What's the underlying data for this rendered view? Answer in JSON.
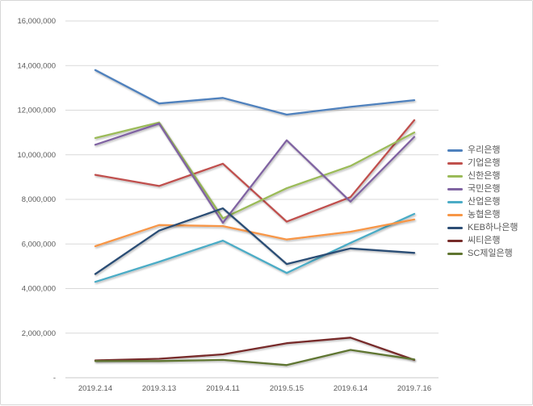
{
  "chart_data": {
    "type": "line",
    "title": "",
    "xlabel": "",
    "ylabel": "",
    "categories": [
      "2019.2.14",
      "2019.3.13",
      "2019.4.11",
      "2019.5.15",
      "2019.6.14",
      "2019.7.16"
    ],
    "series": [
      {
        "name": "우리은행",
        "color": "#4F81BD",
        "values": [
          13800000,
          12300000,
          12550000,
          11800000,
          12150000,
          12450000
        ]
      },
      {
        "name": "기업은행",
        "color": "#C0504D",
        "values": [
          9100000,
          8600000,
          9600000,
          7000000,
          8100000,
          11550000
        ]
      },
      {
        "name": "신한은행",
        "color": "#9BBB59",
        "values": [
          10750000,
          11450000,
          7150000,
          8500000,
          9500000,
          11000000
        ]
      },
      {
        "name": "국민은행",
        "color": "#8064A2",
        "values": [
          10450000,
          11400000,
          6950000,
          10650000,
          7900000,
          10800000
        ]
      },
      {
        "name": "산업은행",
        "color": "#4BACC6",
        "values": [
          4300000,
          5200000,
          6150000,
          4700000,
          6050000,
          7350000
        ]
      },
      {
        "name": "농협은행",
        "color": "#F79646",
        "values": [
          5900000,
          6850000,
          6800000,
          6200000,
          6550000,
          7100000
        ]
      },
      {
        "name": "KEB하나은행",
        "color": "#2C4D75",
        "values": [
          4650000,
          6600000,
          7600000,
          5100000,
          5800000,
          5600000
        ]
      },
      {
        "name": "씨티은행",
        "color": "#772C2A",
        "values": [
          780000,
          850000,
          1050000,
          1550000,
          1800000,
          800000
        ]
      },
      {
        "name": "SC제일은행",
        "color": "#5F7530",
        "values": [
          750000,
          750000,
          800000,
          570000,
          1250000,
          820000
        ]
      }
    ],
    "ylim": [
      0,
      16000000
    ],
    "y_tick_step": 2000000,
    "y_tick_labels_top_down": [
      "16,000,000",
      "14,000,000",
      "12,000,000",
      "10,000,000",
      "8,000,000",
      "6,000,000",
      "4,000,000",
      "2,000,000",
      "-"
    ],
    "grid": true,
    "legend_position": "right"
  },
  "style": {
    "axis_text_color": "#595959",
    "gridline_color": "#D9D9D9",
    "axis_line_color": "#C9C9C9",
    "frame_border_color": "#D7D7D7",
    "background": "#FFFFFF"
  }
}
